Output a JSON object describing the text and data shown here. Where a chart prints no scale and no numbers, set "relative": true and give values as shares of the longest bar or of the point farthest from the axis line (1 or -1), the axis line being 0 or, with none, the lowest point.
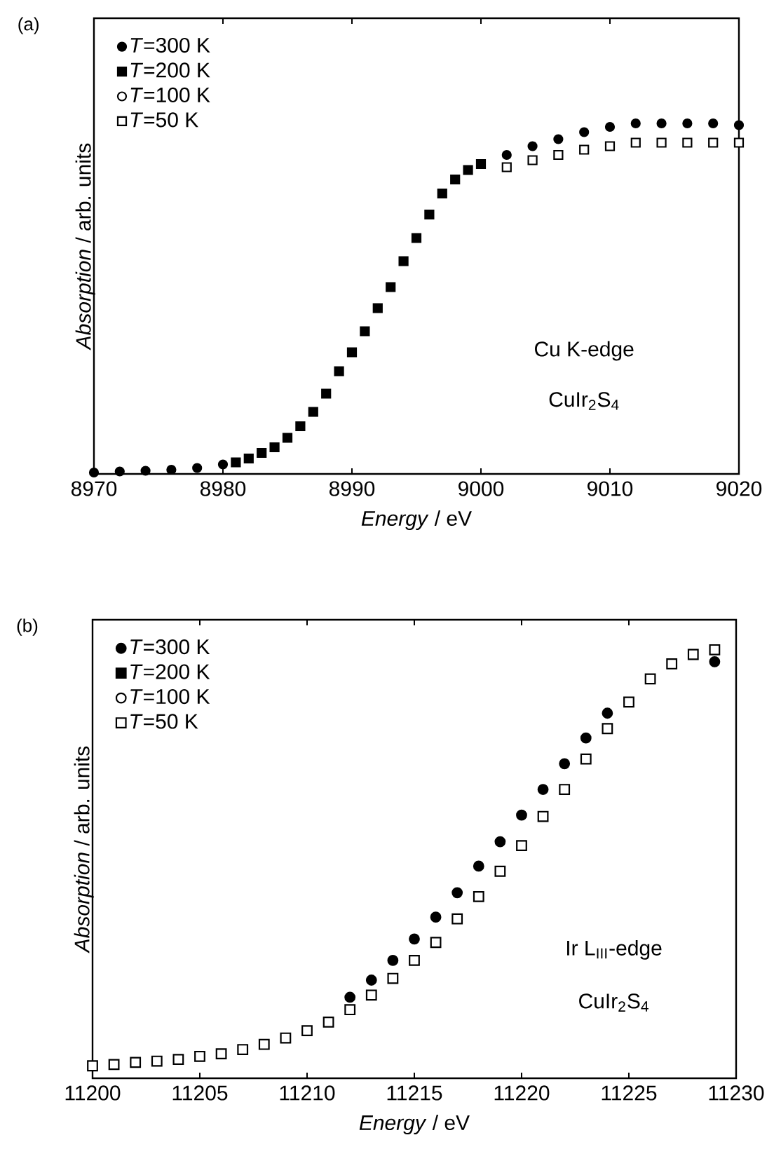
{
  "chart_data": [
    {
      "type": "scatter",
      "title": "(a)",
      "xlabel": "*Energy* / eV",
      "ylabel": "*Absorption* / arb. units",
      "relative": true,
      "legend": "top left",
      "annotations": [
        "Cu K-edge",
        "CuIr$_{2}$S$_{4}$"
      ],
      "xlim": [
        8970,
        9020
      ],
      "xticks": [
        8970,
        8980,
        8990,
        9000,
        9010,
        9020
      ],
      "x": [
        8970,
        8972,
        8974,
        8976,
        8978,
        8980,
        8981,
        8982,
        8983,
        8984,
        8985,
        8986,
        8987,
        8988,
        8989,
        8990,
        8991,
        8992,
        8993,
        8994,
        8995,
        8996,
        8997,
        8998,
        8999,
        9000,
        9002,
        9004,
        9006,
        9008,
        9010,
        9012,
        9014,
        9016,
        9018,
        9020
      ],
      "series": [
        {
          "name": "*T*=300 K",
          "color": "#000000",
          "marker": "circle",
          "values": [
            0.004,
            0.007,
            0.009,
            0.012,
            0.017,
            0.027,
            null,
            null,
            null,
            null,
            null,
            null,
            null,
            null,
            null,
            null,
            null,
            null,
            null,
            null,
            null,
            null,
            null,
            null,
            null,
            null,
            0.91,
            0.935,
            0.955,
            0.975,
            0.99,
            1.0,
            1.0,
            1.0,
            1.0,
            0.995
          ]
        },
        {
          "name": "*T*=200 K",
          "color": "#000000",
          "marker": "square",
          "values": [
            null,
            null,
            null,
            null,
            null,
            null,
            0.033,
            0.044,
            0.06,
            0.076,
            0.103,
            0.136,
            0.177,
            0.229,
            0.293,
            0.347,
            0.407,
            0.473,
            0.533,
            0.607,
            0.673,
            0.74,
            0.8,
            0.84,
            0.867,
            0.884,
            null,
            null,
            null,
            null,
            null,
            null,
            null,
            null,
            null,
            null
          ]
        },
        {
          "name": "*T*=100 K",
          "color": "#000000",
          "marker": "circle",
          "values": [
            null,
            null,
            null,
            null,
            null,
            null,
            null,
            null,
            null,
            null,
            null,
            null,
            null,
            null,
            null,
            null,
            null,
            null,
            null,
            null,
            null,
            null,
            null,
            null,
            null,
            null,
            null,
            null,
            null,
            null,
            null,
            null,
            null,
            null,
            null,
            null
          ]
        },
        {
          "name": "*T*=50 K",
          "color": "#000000",
          "marker": "square",
          "values": [
            null,
            null,
            null,
            null,
            null,
            null,
            null,
            null,
            null,
            null,
            null,
            null,
            null,
            null,
            null,
            null,
            null,
            null,
            null,
            null,
            null,
            null,
            null,
            null,
            null,
            null,
            0.875,
            0.895,
            0.91,
            0.925,
            0.935,
            0.945,
            0.945,
            0.945,
            0.945,
            0.945
          ]
        }
      ]
    },
    {
      "type": "scatter",
      "title": "(b)",
      "xlabel": "*Energy* / eV",
      "ylabel": "*Absorption* / arb. units",
      "relative": true,
      "legend": "top left",
      "annotations": [
        "Ir L$_{III}$-edge",
        "CuIr$_{2}$S$_{4}$"
      ],
      "xlim": [
        11200,
        11230
      ],
      "xticks": [
        11200,
        11205,
        11210,
        11215,
        11220,
        11225,
        11230
      ],
      "x": [
        11200,
        11201,
        11202,
        11203,
        11204,
        11205,
        11206,
        11207,
        11208,
        11209,
        11210,
        11211,
        11212,
        11213,
        11214,
        11215,
        11216,
        11217,
        11218,
        11219,
        11220,
        11221,
        11222,
        11223,
        11224,
        11225,
        11226,
        11227,
        11228,
        11229
      ],
      "series": [
        {
          "name": "*T*=300 K",
          "color": "#000000",
          "marker": "circle",
          "values": [
            null,
            null,
            null,
            null,
            null,
            null,
            null,
            null,
            null,
            null,
            null,
            null,
            0.189,
            0.229,
            0.275,
            0.325,
            0.376,
            0.433,
            0.495,
            0.552,
            0.614,
            0.674,
            0.734,
            0.794,
            0.852,
            null,
            null,
            null,
            null,
            0.972
          ]
        },
        {
          "name": "*T*=200 K",
          "color": "#000000",
          "marker": "square",
          "values": [
            null,
            null,
            null,
            null,
            null,
            null,
            null,
            null,
            null,
            null,
            null,
            null,
            null,
            null,
            null,
            null,
            null,
            null,
            null,
            null,
            null,
            null,
            null,
            null,
            null,
            null,
            null,
            null,
            null,
            null
          ]
        },
        {
          "name": "*T*=100 K",
          "color": "#000000",
          "marker": "circle",
          "values": [
            null,
            null,
            null,
            null,
            null,
            null,
            null,
            null,
            null,
            null,
            null,
            null,
            null,
            null,
            null,
            null,
            null,
            null,
            null,
            null,
            null,
            null,
            null,
            null,
            null,
            null,
            null,
            null,
            null,
            null
          ]
        },
        {
          "name": "*T*=50 K",
          "color": "#000000",
          "marker": "square",
          "values": [
            0.029,
            0.032,
            0.037,
            0.04,
            0.044,
            0.051,
            0.057,
            0.067,
            0.079,
            0.094,
            0.111,
            0.131,
            0.16,
            0.194,
            0.233,
            0.275,
            0.317,
            0.372,
            0.424,
            0.483,
            0.543,
            0.611,
            0.674,
            0.745,
            0.816,
            0.878,
            0.932,
            0.967,
            0.989,
            1
          ]
        }
      ]
    }
  ]
}
